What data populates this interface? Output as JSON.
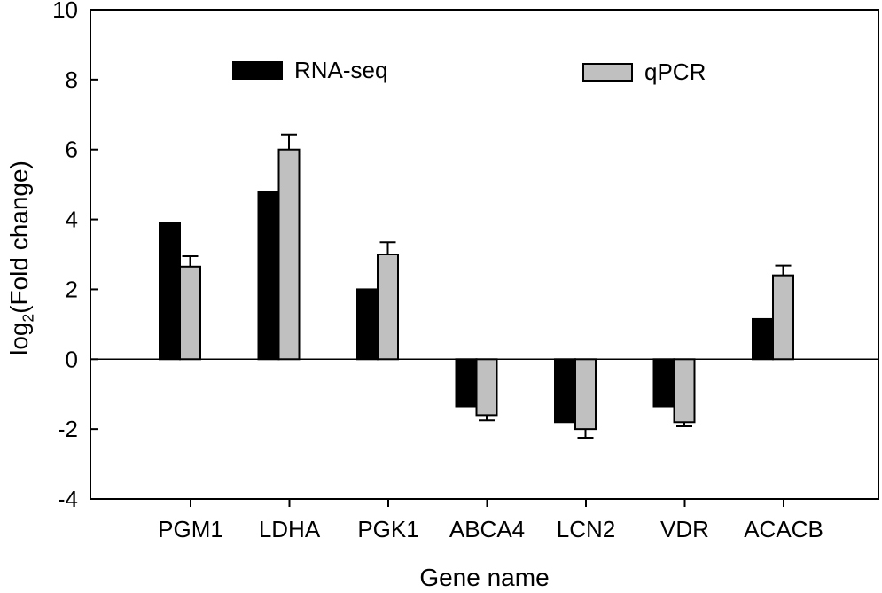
{
  "chart_data": {
    "type": "bar",
    "title": "",
    "xlabel": "Gene name",
    "ylabel": "log2(Fold change)",
    "ylabel_parts": {
      "prefix": "log",
      "sub": "2",
      "rest": "(Fold change)"
    },
    "categories": [
      "PGM1",
      "LDHA",
      "PGK1",
      "ABCA4",
      "LCN2",
      "VDR",
      "ACACB"
    ],
    "series": [
      {
        "name": "RNA-seq",
        "color": "#000000",
        "values": [
          3.9,
          4.8,
          2.0,
          -1.35,
          -1.8,
          -1.35,
          1.15
        ]
      },
      {
        "name": "qPCR",
        "color": "#c0c0c0",
        "values": [
          2.65,
          6.0,
          3.0,
          -1.6,
          -2.0,
          -1.8,
          2.4
        ],
        "errors": [
          0.3,
          0.43,
          0.35,
          0.15,
          0.25,
          0.12,
          0.28
        ]
      }
    ],
    "ylim": [
      -4,
      10
    ],
    "yticks": [
      10,
      8,
      6,
      4,
      2,
      0,
      -2,
      -4
    ],
    "grid": false,
    "zero_line": true,
    "legend_position": "inside-top",
    "axis_color": "#000000",
    "background": "#ffffff"
  }
}
